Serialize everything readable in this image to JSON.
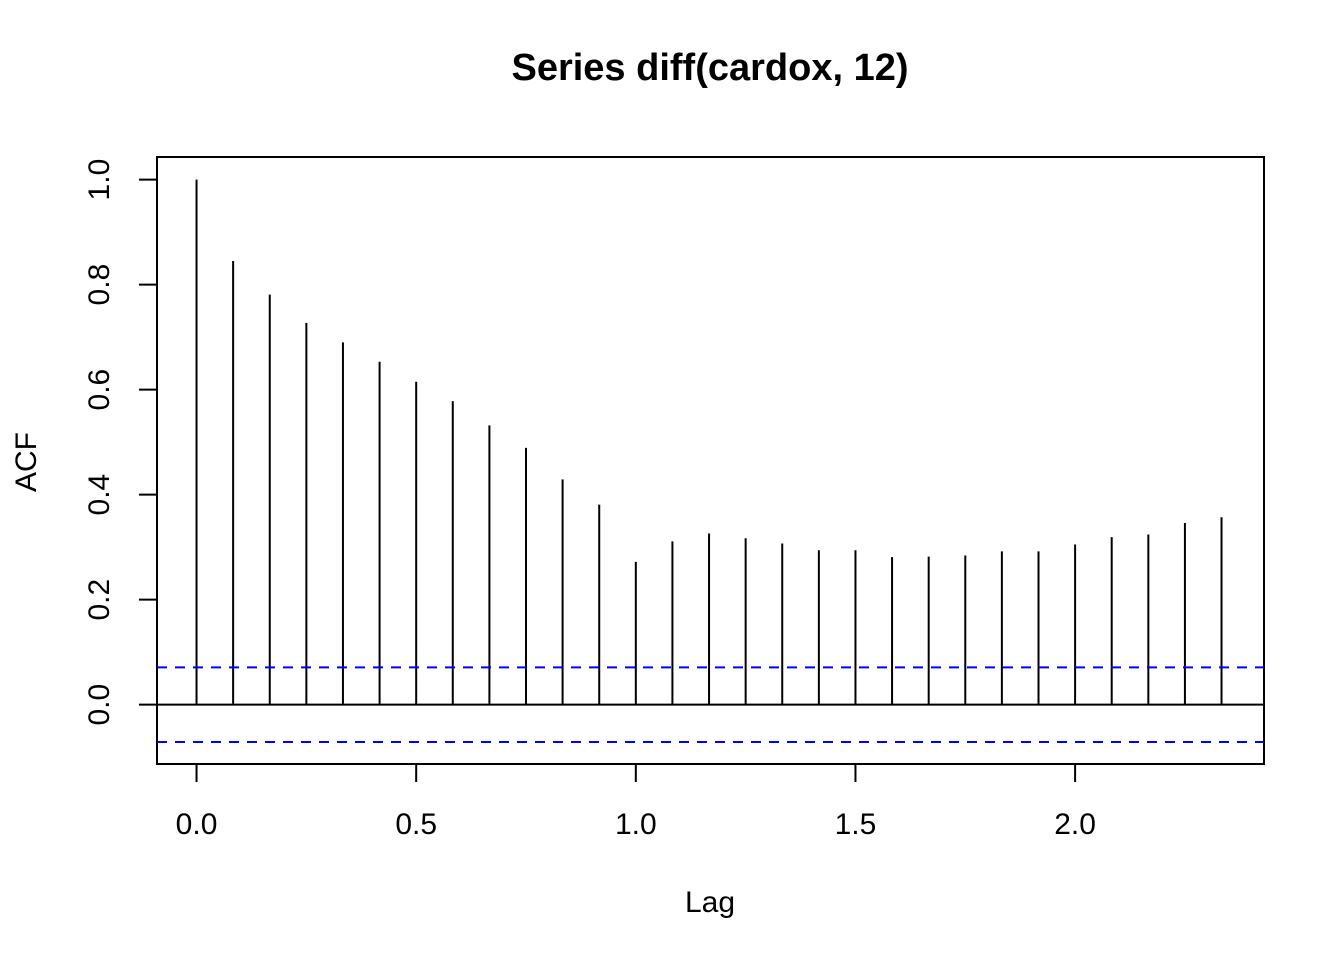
{
  "chart_data": {
    "type": "bar",
    "title": "Series  diff(cardox, 12)",
    "xlabel": "Lag",
    "ylabel": "ACF",
    "xlim": [
      -0.09,
      2.43
    ],
    "ylim": [
      -0.113,
      1.043
    ],
    "xticks": [
      "0.0",
      "0.5",
      "1.0",
      "1.5",
      "2.0"
    ],
    "xtick_values": [
      0.0,
      0.5,
      1.0,
      1.5,
      2.0
    ],
    "yticks": [
      "0.0",
      "0.2",
      "0.4",
      "0.6",
      "0.8",
      "1.0"
    ],
    "ytick_values": [
      0.0,
      0.2,
      0.4,
      0.6,
      0.8,
      1.0
    ],
    "lags": [
      0,
      0.0833,
      0.1667,
      0.25,
      0.3333,
      0.4167,
      0.5,
      0.5833,
      0.6667,
      0.75,
      0.8333,
      0.9167,
      1.0,
      1.0833,
      1.1667,
      1.25,
      1.3333,
      1.4167,
      1.5,
      1.5833,
      1.6667,
      1.75,
      1.8333,
      1.9167,
      2.0,
      2.0833,
      2.1667,
      2.25,
      2.3333
    ],
    "values": [
      1.0,
      0.845,
      0.781,
      0.727,
      0.69,
      0.653,
      0.615,
      0.578,
      0.532,
      0.489,
      0.429,
      0.381,
      0.272,
      0.311,
      0.326,
      0.317,
      0.307,
      0.294,
      0.294,
      0.281,
      0.282,
      0.284,
      0.292,
      0.292,
      0.305,
      0.319,
      0.324,
      0.346,
      0.357
    ],
    "conf_limit": 0.071,
    "colors": {
      "bars": "#000000",
      "conf": "#0000ff",
      "zero": "#000000"
    }
  }
}
